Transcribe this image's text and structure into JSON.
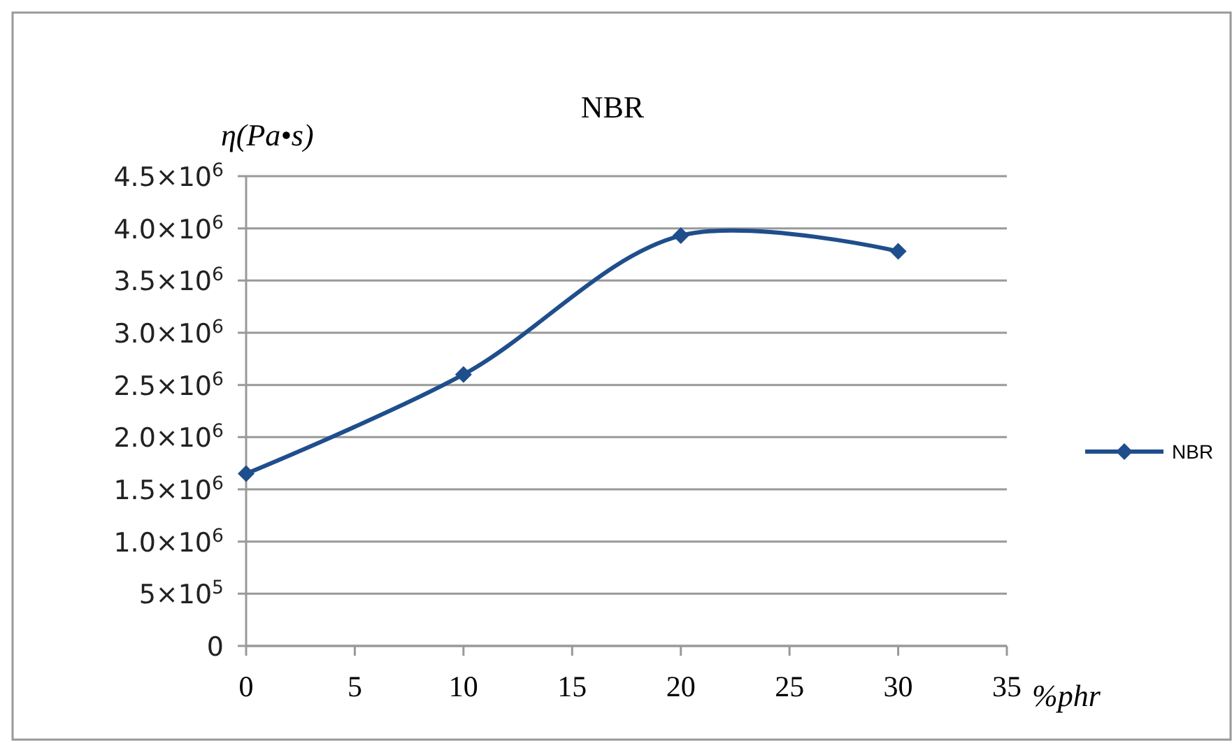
{
  "chart_data": {
    "type": "line",
    "title": "NBR",
    "ylabel": "η(Pa•s)",
    "xlabel": "%phr",
    "x": [
      0,
      10,
      20,
      30
    ],
    "series": [
      {
        "name": "NBR",
        "color": "#1f4e8c",
        "values": [
          1650000,
          2600000,
          3930000,
          3780000
        ]
      }
    ],
    "xlim": [
      0,
      35
    ],
    "xticks": [
      0,
      5,
      10,
      15,
      20,
      25,
      30,
      35
    ],
    "ylim": [
      0,
      4500000
    ],
    "yticks": [
      {
        "value": 0,
        "label": "0"
      },
      {
        "value": 500000,
        "label": "5×10$^{5}$"
      },
      {
        "value": 1000000,
        "label": "1.0×10$^{6}$"
      },
      {
        "value": 1500000,
        "label": "1.5×10$^{6}$"
      },
      {
        "value": 2000000,
        "label": "2.0×10$^{6}$"
      },
      {
        "value": 2500000,
        "label": "2.5×10$^{6}$"
      },
      {
        "value": 3000000,
        "label": "3.0×10$^{6}$"
      },
      {
        "value": 3500000,
        "label": "3.5×10$^{6}$"
      },
      {
        "value": 4000000,
        "label": "4.0×10$^{6}$"
      },
      {
        "value": 4500000,
        "label": "4.5×10$^{6}$"
      }
    ],
    "grid": "y",
    "legend": "right",
    "marker": "diamond",
    "line_style": "solid"
  }
}
